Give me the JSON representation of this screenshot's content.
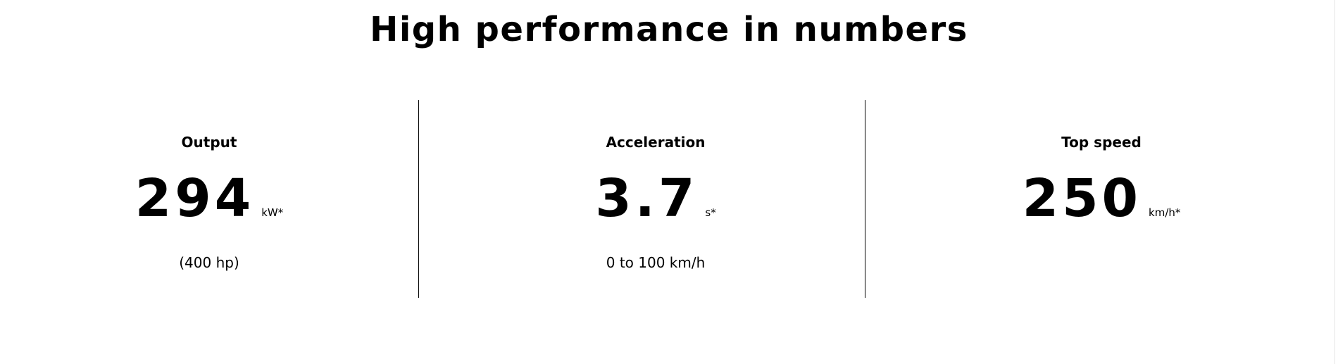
{
  "page": {
    "title": "High performance in numbers"
  },
  "stats": [
    {
      "label": "Output",
      "value": "294",
      "unit": "kW*",
      "sub": "(400 hp)"
    },
    {
      "label": "Acceleration",
      "value": "3.7",
      "unit": "s*",
      "sub": "0 to 100 km/h"
    },
    {
      "label": "Top speed",
      "value": "250",
      "unit": "km/h*",
      "sub": ""
    }
  ],
  "colors": {
    "background": "#ffffff",
    "text": "#000000",
    "divider": "#000000"
  }
}
